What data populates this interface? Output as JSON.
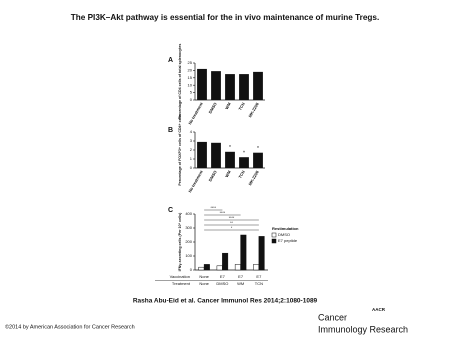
{
  "title": "The PI3K–Akt pathway is essential for the in vivo maintenance of murine Tregs.",
  "chart_data": [
    {
      "type": "bar",
      "panel": "A",
      "ylabel": "Percentage of CD4 cells of total splenocytes",
      "categories": [
        "No treatment",
        "DMSO",
        "WM",
        "TCN",
        "MK-2206"
      ],
      "values": [
        21,
        19.5,
        17.5,
        17.5,
        19
      ],
      "color": "#111111",
      "ylim": [
        0,
        25
      ],
      "yticks": [
        0,
        5,
        10,
        15,
        20,
        25
      ]
    },
    {
      "type": "bar",
      "panel": "B",
      "ylabel": "Percentage of FOXP3+ cells of CD4+ cells",
      "categories": [
        "No treatment",
        "DMSO",
        "WM",
        "TCN",
        "MK-2206"
      ],
      "values": [
        2.9,
        2.8,
        1.8,
        1.2,
        1.7
      ],
      "color": "#111111",
      "ylim": [
        0,
        4
      ],
      "yticks": [
        0,
        1,
        2,
        3,
        4
      ],
      "annotations": [
        {
          "text": "*",
          "category": "WM"
        },
        {
          "text": "*",
          "category": "TCN"
        },
        {
          "text": "*",
          "category": "MK-2206"
        }
      ]
    },
    {
      "type": "grouped-bar",
      "panel": "C",
      "ylabel": "IFNγ-secreting cells (Per 10⁶ cells)",
      "row_labels": [
        "Vaccination",
        "Treatment"
      ],
      "vaccination": [
        "None",
        "E7",
        "E7",
        "E7"
      ],
      "categories": [
        "None",
        "DMSO",
        "WM",
        "TCN"
      ],
      "legend_title": "Restimulation",
      "series": [
        {
          "name": "DMSO",
          "color": "#ffffff",
          "values": [
            20,
            30,
            40,
            40
          ]
        },
        {
          "name": "E7 peptide",
          "color": "#111111",
          "values": [
            40,
            120,
            250,
            240
          ]
        }
      ],
      "ylim": [
        0,
        400
      ],
      "yticks": [
        0,
        100,
        200,
        300,
        400
      ],
      "annotations": [
        "****",
        "****",
        "****",
        "**",
        "*"
      ]
    }
  ],
  "citation": "Rasha Abu-Eid et al. Cancer Immunol Res 2014;2:1080-1089",
  "copyright": "©2014 by American Association for Cancer Research",
  "logo": {
    "mark": "AACR",
    "line1": "Cancer",
    "line2": "Immunology Research"
  }
}
